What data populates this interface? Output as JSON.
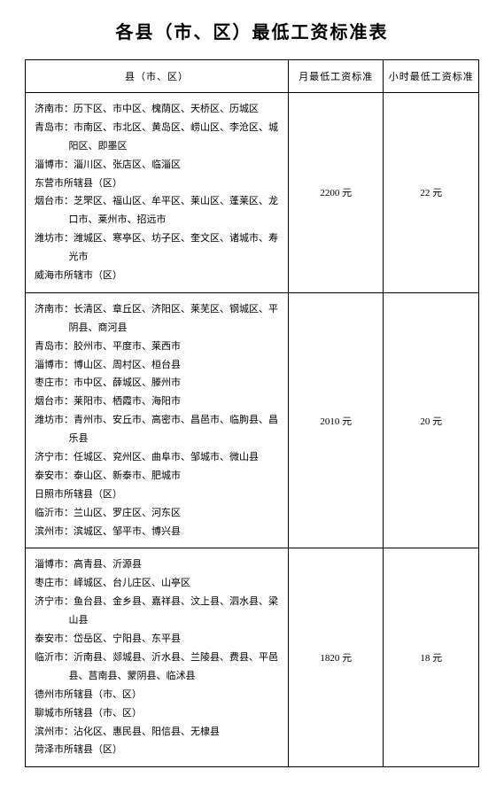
{
  "title": "各县（市、区）最低工资标准表",
  "table": {
    "columns": {
      "region": "县（市、区）",
      "monthly": "月最低工资标准",
      "hourly": "小时最低工资标准"
    },
    "rows": [
      {
        "regions": [
          {
            "city": "济南市：",
            "areas": "历下区、市中区、槐荫区、天桥区、历城区"
          },
          {
            "city": "青岛市：",
            "areas": "市南区、市北区、黄岛区、崂山区、李沧区、城阳区、即墨区"
          },
          {
            "city": "淄博市：",
            "areas": "淄川区、张店区、临淄区"
          },
          {
            "city": "",
            "areas": "东营市所辖县（区）"
          },
          {
            "city": "烟台市：",
            "areas": "芝罘区、福山区、牟平区、莱山区、蓬莱区、龙口市、莱州市、招远市"
          },
          {
            "city": "潍坊市：",
            "areas": "潍城区、寒亭区、坊子区、奎文区、诸城市、寿光市"
          },
          {
            "city": "",
            "areas": "威海市所辖市（区）"
          }
        ],
        "monthly": "2200 元",
        "hourly": "22 元"
      },
      {
        "regions": [
          {
            "city": "济南市：",
            "areas": "长清区、章丘区、济阳区、莱芜区、钢城区、平阴县、商河县"
          },
          {
            "city": "青岛市：",
            "areas": "胶州市、平度市、莱西市"
          },
          {
            "city": "淄博市：",
            "areas": "博山区、周村区、桓台县"
          },
          {
            "city": "枣庄市：",
            "areas": "市中区、薛城区、滕州市"
          },
          {
            "city": "烟台市：",
            "areas": "莱阳市、栖霞市、海阳市"
          },
          {
            "city": "潍坊市：",
            "areas": "青州市、安丘市、高密市、昌邑市、临朐县、昌乐县"
          },
          {
            "city": "济宁市：",
            "areas": "任城区、兖州区、曲阜市、邹城市、微山县"
          },
          {
            "city": "泰安市：",
            "areas": "泰山区、新泰市、肥城市"
          },
          {
            "city": "",
            "areas": "日照市所辖县（区）"
          },
          {
            "city": "临沂市：",
            "areas": "兰山区、罗庄区、河东区"
          },
          {
            "city": "滨州市：",
            "areas": "滨城区、邹平市、博兴县"
          }
        ],
        "monthly": "2010 元",
        "hourly": "20 元"
      },
      {
        "regions": [
          {
            "city": "淄博市：",
            "areas": "高青县、沂源县"
          },
          {
            "city": "枣庄市：",
            "areas": "峄城区、台儿庄区、山亭区"
          },
          {
            "city": "济宁市：",
            "areas": "鱼台县、金乡县、嘉祥县、汶上县、泗水县、梁山县"
          },
          {
            "city": "泰安市：",
            "areas": "岱岳区、宁阳县、东平县"
          },
          {
            "city": "临沂市：",
            "areas": "沂南县、郯城县、沂水县、兰陵县、费县、平邑县、莒南县、蒙阴县、临沭县"
          },
          {
            "city": "",
            "areas": "德州市所辖县（市、区）"
          },
          {
            "city": "",
            "areas": "聊城市所辖县（市、区）"
          },
          {
            "city": "滨州市：",
            "areas": "沾化区、惠民县、阳信县、无棣县"
          },
          {
            "city": "",
            "areas": "菏泽市所辖县（区）"
          }
        ],
        "monthly": "1820 元",
        "hourly": "18 元"
      }
    ]
  }
}
